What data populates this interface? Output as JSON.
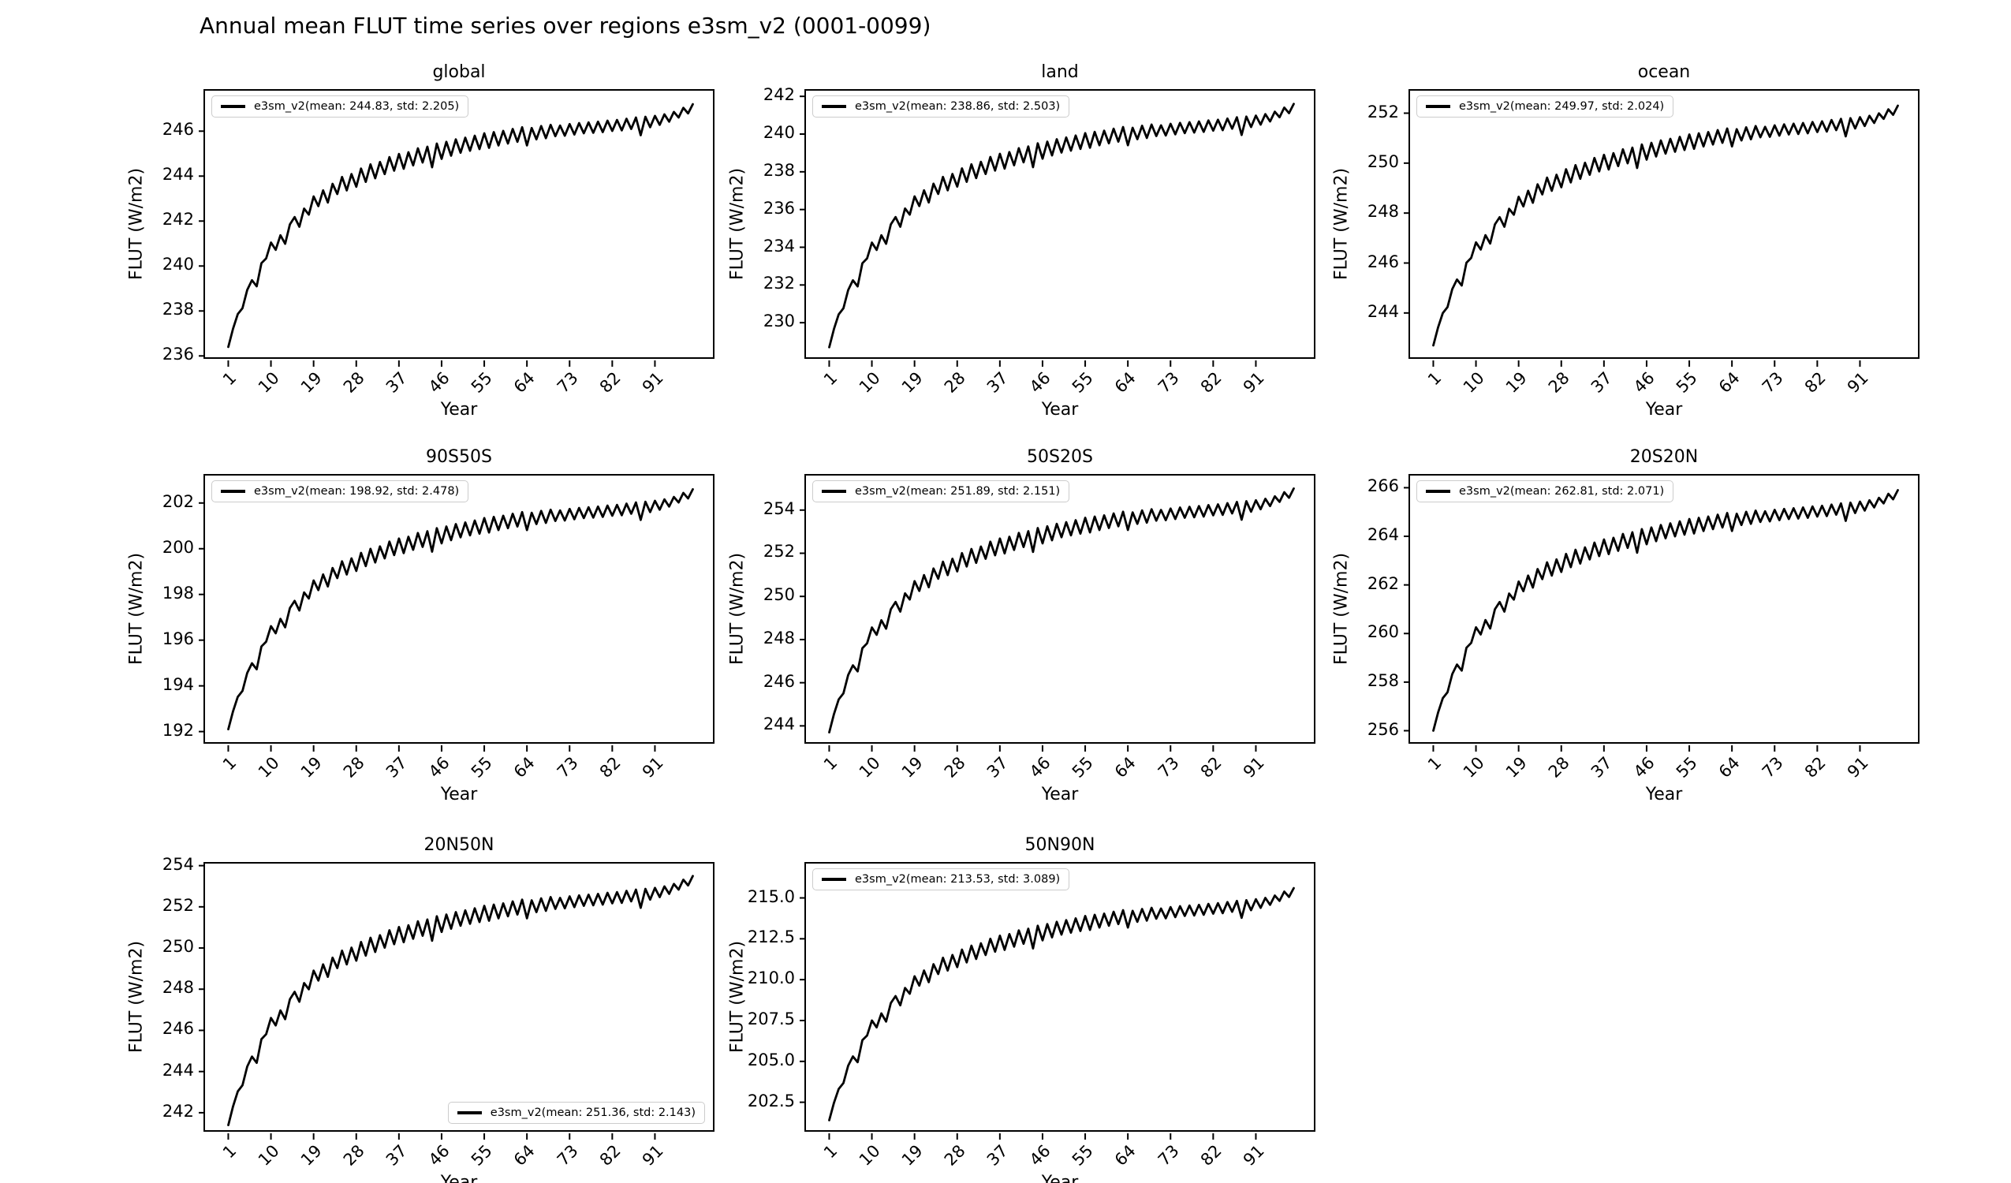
{
  "figure": {
    "title": "Annual mean FLUT time series over regions e3sm_v2 (0001-0099)"
  },
  "chart_data": {
    "type": "line",
    "title": "Annual mean FLUT time series over regions e3sm_v2 (0001-0099)",
    "xlabel": "Year",
    "ylabel": "FLUT (W/m2)",
    "series_name": "e3sm_v2",
    "line_color": "#000000",
    "x_range": [
      1,
      99
    ],
    "xticks": [
      "1",
      "10",
      "19",
      "28",
      "37",
      "46",
      "55",
      "64",
      "73",
      "82",
      "91"
    ],
    "grid": false,
    "normalized_profile": [
      0.0,
      0.075,
      0.135,
      0.16,
      0.235,
      0.275,
      0.25,
      0.345,
      0.365,
      0.43,
      0.4,
      0.46,
      0.425,
      0.505,
      0.535,
      0.495,
      0.57,
      0.545,
      0.62,
      0.58,
      0.645,
      0.595,
      0.672,
      0.63,
      0.7,
      0.645,
      0.712,
      0.66,
      0.735,
      0.68,
      0.752,
      0.695,
      0.762,
      0.712,
      0.782,
      0.726,
      0.795,
      0.734,
      0.802,
      0.748,
      0.818,
      0.76,
      0.825,
      0.74,
      0.838,
      0.775,
      0.845,
      0.788,
      0.855,
      0.8,
      0.862,
      0.808,
      0.87,
      0.815,
      0.88,
      0.82,
      0.885,
      0.83,
      0.89,
      0.838,
      0.898,
      0.845,
      0.905,
      0.83,
      0.902,
      0.855,
      0.91,
      0.86,
      0.915,
      0.868,
      0.912,
      0.87,
      0.918,
      0.875,
      0.922,
      0.88,
      0.925,
      0.882,
      0.928,
      0.885,
      0.932,
      0.89,
      0.935,
      0.892,
      0.94,
      0.898,
      0.945,
      0.872,
      0.948,
      0.905,
      0.952,
      0.915,
      0.958,
      0.928,
      0.968,
      0.945,
      0.985,
      0.962,
      1.0
    ],
    "charts": [
      {
        "title": "global",
        "legend": "e3sm_v2(mean: 244.83, std: 2.205)",
        "mean": 244.83,
        "std": 2.205,
        "start": 236.4,
        "end": 247.2,
        "ylim": [
          235.8,
          247.8
        ],
        "yticks": [
          "236",
          "238",
          "240",
          "242",
          "244",
          "246"
        ],
        "legend_pos": "upper-left"
      },
      {
        "title": "land",
        "legend": "e3sm_v2(mean: 238.86, std: 2.503)",
        "mean": 238.86,
        "std": 2.503,
        "start": 228.7,
        "end": 241.6,
        "ylim": [
          228.0,
          242.3
        ],
        "yticks": [
          "230",
          "232",
          "234",
          "236",
          "238",
          "240",
          "242"
        ],
        "legend_pos": "upper-left"
      },
      {
        "title": "ocean",
        "legend": "e3sm_v2(mean: 249.97, std: 2.024)",
        "mean": 249.97,
        "std": 2.024,
        "start": 242.7,
        "end": 252.3,
        "ylim": [
          242.1,
          252.9
        ],
        "yticks": [
          "244",
          "246",
          "248",
          "250",
          "252"
        ],
        "legend_pos": "upper-left"
      },
      {
        "title": "90S50S",
        "legend": "e3sm_v2(mean: 198.92, std: 2.478)",
        "mean": 198.92,
        "std": 2.478,
        "start": 192.1,
        "end": 202.6,
        "ylim": [
          191.4,
          203.2
        ],
        "yticks": [
          "192",
          "194",
          "196",
          "198",
          "200",
          "202"
        ],
        "legend_pos": "upper-left"
      },
      {
        "title": "50S20S",
        "legend": "e3sm_v2(mean: 251.89, std: 2.151)",
        "mean": 251.89,
        "std": 2.151,
        "start": 243.7,
        "end": 255.0,
        "ylim": [
          243.1,
          255.6
        ],
        "yticks": [
          "244",
          "246",
          "248",
          "250",
          "252",
          "254"
        ],
        "legend_pos": "upper-left"
      },
      {
        "title": "20S20N",
        "legend": "e3sm_v2(mean: 262.81, std: 2.071)",
        "mean": 262.81,
        "std": 2.071,
        "start": 256.0,
        "end": 265.9,
        "ylim": [
          255.4,
          266.5
        ],
        "yticks": [
          "256",
          "258",
          "260",
          "262",
          "264",
          "266"
        ],
        "legend_pos": "upper-left"
      },
      {
        "title": "20N50N",
        "legend": "e3sm_v2(mean: 251.36, std: 2.143)",
        "mean": 251.36,
        "std": 2.143,
        "start": 241.4,
        "end": 253.5,
        "ylim": [
          241.0,
          254.1
        ],
        "yticks": [
          "242",
          "244",
          "246",
          "248",
          "250",
          "252",
          "254"
        ],
        "legend_pos": "lower-right"
      },
      {
        "title": "50N90N",
        "legend": "e3sm_v2(mean: 213.53, std: 3.089)",
        "mean": 213.53,
        "std": 3.089,
        "start": 201.4,
        "end": 215.6,
        "ylim": [
          200.6,
          217.1
        ],
        "yticks": [
          "202.5",
          "205.0",
          "207.5",
          "210.0",
          "212.5",
          "215.0"
        ],
        "legend_pos": "upper-left"
      }
    ]
  }
}
